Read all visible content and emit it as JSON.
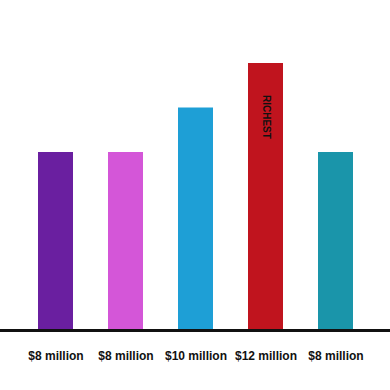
{
  "chart_data": {
    "type": "bar",
    "categories": [
      null,
      null,
      null,
      null,
      null
    ],
    "values": [
      8,
      8,
      10,
      12,
      8
    ],
    "value_labels": [
      "$8 million",
      "$8 million",
      "$10 million",
      "$12 million",
      "$8 million"
    ],
    "colors": [
      "#6a1fa0",
      "#d456d8",
      "#1e9fd6",
      "#c0141e",
      "#1a95aa"
    ],
    "data_labels": true,
    "tick_labels": false,
    "grid": false,
    "ylim": [
      0,
      12
    ],
    "annotations": [
      {
        "text": "RICHEST",
        "x": 3,
        "y": 9.6
      }
    ]
  }
}
